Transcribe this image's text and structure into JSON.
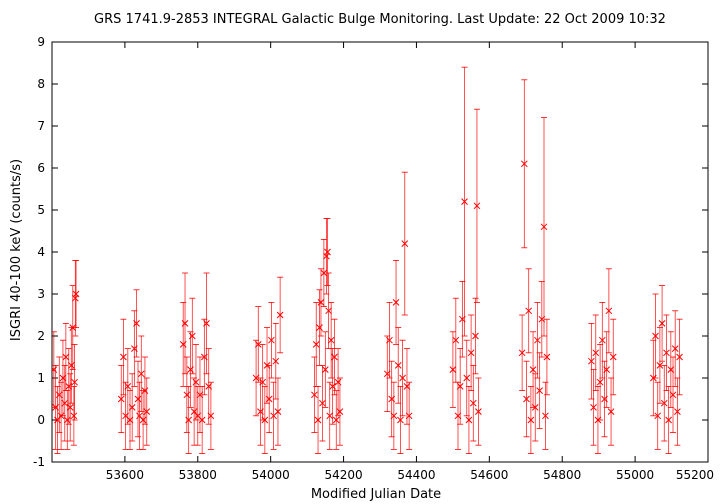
{
  "chart_data": {
    "type": "scatter",
    "title": "GRS 1741.9-2853   INTEGRAL Galactic Bulge Monitoring.  Last Update: 22 Oct 2009 10:32",
    "xlabel": "Modified Julian Date",
    "ylabel": "ISGRI 40-100 keV (counts/s)",
    "xlim": [
      53400,
      55200
    ],
    "ylim": [
      -1,
      9
    ],
    "x_ticks": [
      53600,
      53800,
      54000,
      54200,
      54400,
      54600,
      54800,
      55000,
      55200
    ],
    "y_ticks": [
      -1,
      0,
      1,
      2,
      3,
      4,
      5,
      6,
      7,
      8,
      9
    ],
    "marker": "x",
    "grid": false,
    "legend": "none",
    "color": "#ff0000",
    "series": [
      {
        "points": [
          {
            "x": 53405,
            "y": 1.2,
            "err": 0.9
          },
          {
            "x": 53410,
            "y": 0.3,
            "err": 1.0
          },
          {
            "x": 53415,
            "y": 0.0,
            "err": 0.8
          },
          {
            "x": 53420,
            "y": 0.6,
            "err": 0.9
          },
          {
            "x": 53425,
            "y": 0.1,
            "err": 0.8
          },
          {
            "x": 53430,
            "y": 1.0,
            "err": 0.9
          },
          {
            "x": 53435,
            "y": 0.4,
            "err": 0.9
          },
          {
            "x": 53438,
            "y": 1.5,
            "err": 0.8
          },
          {
            "x": 53442,
            "y": 0.0,
            "err": 0.7
          },
          {
            "x": 53446,
            "y": 0.8,
            "err": 0.9
          },
          {
            "x": 53450,
            "y": 0.3,
            "err": 0.8
          },
          {
            "x": 53453,
            "y": 1.3,
            "err": 0.9
          },
          {
            "x": 53457,
            "y": 2.2,
            "err": 1.0
          },
          {
            "x": 53460,
            "y": 0.1,
            "err": 0.7
          },
          {
            "x": 53462,
            "y": 0.9,
            "err": 0.9
          },
          {
            "x": 53464,
            "y": 2.9,
            "err": 0.9
          },
          {
            "x": 53466,
            "y": 3.0,
            "err": 0.8
          },
          {
            "x": 53590,
            "y": 0.5,
            "err": 0.8
          },
          {
            "x": 53596,
            "y": 1.5,
            "err": 0.9
          },
          {
            "x": 53602,
            "y": 0.1,
            "err": 0.8
          },
          {
            "x": 53608,
            "y": 0.8,
            "err": 0.9
          },
          {
            "x": 53614,
            "y": 0.0,
            "err": 0.7
          },
          {
            "x": 53620,
            "y": 0.3,
            "err": 0.8
          },
          {
            "x": 53626,
            "y": 1.7,
            "err": 0.9
          },
          {
            "x": 53632,
            "y": 2.3,
            "err": 0.8
          },
          {
            "x": 53636,
            "y": 0.5,
            "err": 0.9
          },
          {
            "x": 53640,
            "y": 0.1,
            "err": 0.8
          },
          {
            "x": 53645,
            "y": 1.1,
            "err": 0.9
          },
          {
            "x": 53650,
            "y": 0.0,
            "err": 0.7
          },
          {
            "x": 53655,
            "y": 0.7,
            "err": 0.8
          },
          {
            "x": 53660,
            "y": 0.2,
            "err": 0.8
          },
          {
            "x": 53760,
            "y": 1.8,
            "err": 1.0
          },
          {
            "x": 53765,
            "y": 2.3,
            "err": 1.2
          },
          {
            "x": 53770,
            "y": 0.6,
            "err": 0.9
          },
          {
            "x": 53775,
            "y": 0.0,
            "err": 0.8
          },
          {
            "x": 53780,
            "y": 1.2,
            "err": 0.9
          },
          {
            "x": 53785,
            "y": 2.0,
            "err": 0.9
          },
          {
            "x": 53790,
            "y": 0.2,
            "err": 0.8
          },
          {
            "x": 53795,
            "y": 0.9,
            "err": 0.9
          },
          {
            "x": 53800,
            "y": 0.1,
            "err": 0.7
          },
          {
            "x": 53806,
            "y": 0.6,
            "err": 0.9
          },
          {
            "x": 53812,
            "y": 0.0,
            "err": 0.8
          },
          {
            "x": 53818,
            "y": 1.5,
            "err": 0.9
          },
          {
            "x": 53824,
            "y": 2.3,
            "err": 1.2
          },
          {
            "x": 53830,
            "y": 0.8,
            "err": 0.9
          },
          {
            "x": 53836,
            "y": 0.1,
            "err": 0.8
          },
          {
            "x": 53960,
            "y": 1.0,
            "err": 0.9
          },
          {
            "x": 53966,
            "y": 1.8,
            "err": 0.9
          },
          {
            "x": 53972,
            "y": 0.2,
            "err": 0.8
          },
          {
            "x": 53978,
            "y": 0.9,
            "err": 0.9
          },
          {
            "x": 53984,
            "y": 0.0,
            "err": 0.8
          },
          {
            "x": 53990,
            "y": 1.3,
            "err": 0.9
          },
          {
            "x": 53996,
            "y": 0.5,
            "err": 0.8
          },
          {
            "x": 54002,
            "y": 1.9,
            "err": 0.9
          },
          {
            "x": 54008,
            "y": 0.1,
            "err": 0.8
          },
          {
            "x": 54014,
            "y": 1.4,
            "err": 0.9
          },
          {
            "x": 54020,
            "y": 0.2,
            "err": 0.8
          },
          {
            "x": 54026,
            "y": 2.5,
            "err": 0.9
          },
          {
            "x": 54120,
            "y": 0.6,
            "err": 0.9
          },
          {
            "x": 54125,
            "y": 1.8,
            "err": 1.0
          },
          {
            "x": 54130,
            "y": 0.0,
            "err": 0.8
          },
          {
            "x": 54134,
            "y": 2.2,
            "err": 0.9
          },
          {
            "x": 54138,
            "y": 2.8,
            "err": 0.8
          },
          {
            "x": 54142,
            "y": 0.4,
            "err": 0.9
          },
          {
            "x": 54146,
            "y": 3.5,
            "err": 0.8
          },
          {
            "x": 54150,
            "y": 1.2,
            "err": 0.9
          },
          {
            "x": 54153,
            "y": 3.9,
            "err": 0.9
          },
          {
            "x": 54156,
            "y": 4.0,
            "err": 0.8
          },
          {
            "x": 54159,
            "y": 2.6,
            "err": 0.9
          },
          {
            "x": 54162,
            "y": 0.1,
            "err": 0.8
          },
          {
            "x": 54166,
            "y": 1.9,
            "err": 0.9
          },
          {
            "x": 54170,
            "y": 0.8,
            "err": 0.9
          },
          {
            "x": 54175,
            "y": 1.5,
            "err": 0.9
          },
          {
            "x": 54180,
            "y": 0.0,
            "err": 0.7
          },
          {
            "x": 54185,
            "y": 0.9,
            "err": 0.8
          },
          {
            "x": 54190,
            "y": 0.2,
            "err": 0.8
          },
          {
            "x": 54320,
            "y": 1.1,
            "err": 0.9
          },
          {
            "x": 54326,
            "y": 1.9,
            "err": 0.9
          },
          {
            "x": 54332,
            "y": 0.5,
            "err": 0.9
          },
          {
            "x": 54338,
            "y": 0.1,
            "err": 0.8
          },
          {
            "x": 54344,
            "y": 2.8,
            "err": 1.0
          },
          {
            "x": 54350,
            "y": 1.3,
            "err": 0.9
          },
          {
            "x": 54356,
            "y": 0.0,
            "err": 0.8
          },
          {
            "x": 54362,
            "y": 1.0,
            "err": 0.9
          },
          {
            "x": 54368,
            "y": 4.2,
            "err": 1.7
          },
          {
            "x": 54374,
            "y": 0.8,
            "err": 0.9
          },
          {
            "x": 54380,
            "y": 0.1,
            "err": 0.8
          },
          {
            "x": 54500,
            "y": 1.2,
            "err": 0.9
          },
          {
            "x": 54508,
            "y": 1.9,
            "err": 1.0
          },
          {
            "x": 54514,
            "y": 0.1,
            "err": 0.8
          },
          {
            "x": 54520,
            "y": 0.8,
            "err": 0.9
          },
          {
            "x": 54526,
            "y": 2.4,
            "err": 0.9
          },
          {
            "x": 54532,
            "y": 5.2,
            "err": 3.2
          },
          {
            "x": 54538,
            "y": 1.0,
            "err": 0.9
          },
          {
            "x": 54544,
            "y": 0.0,
            "err": 0.8
          },
          {
            "x": 54550,
            "y": 1.6,
            "err": 0.9
          },
          {
            "x": 54556,
            "y": 0.4,
            "err": 0.9
          },
          {
            "x": 54562,
            "y": 2.0,
            "err": 0.9
          },
          {
            "x": 54566,
            "y": 5.1,
            "err": 2.3
          },
          {
            "x": 54570,
            "y": 0.2,
            "err": 0.8
          },
          {
            "x": 54690,
            "y": 1.6,
            "err": 0.9
          },
          {
            "x": 54696,
            "y": 6.1,
            "err": 2.0
          },
          {
            "x": 54702,
            "y": 0.5,
            "err": 0.9
          },
          {
            "x": 54708,
            "y": 2.6,
            "err": 1.0
          },
          {
            "x": 54714,
            "y": 0.0,
            "err": 0.8
          },
          {
            "x": 54720,
            "y": 1.2,
            "err": 0.9
          },
          {
            "x": 54726,
            "y": 0.3,
            "err": 0.8
          },
          {
            "x": 54732,
            "y": 1.9,
            "err": 0.9
          },
          {
            "x": 54738,
            "y": 0.7,
            "err": 0.9
          },
          {
            "x": 54744,
            "y": 2.4,
            "err": 0.9
          },
          {
            "x": 54750,
            "y": 4.6,
            "err": 2.6
          },
          {
            "x": 54754,
            "y": 0.1,
            "err": 0.8
          },
          {
            "x": 54758,
            "y": 1.5,
            "err": 0.9
          },
          {
            "x": 54880,
            "y": 1.4,
            "err": 0.9
          },
          {
            "x": 54886,
            "y": 0.3,
            "err": 0.9
          },
          {
            "x": 54892,
            "y": 1.6,
            "err": 0.9
          },
          {
            "x": 54898,
            "y": 0.0,
            "err": 0.8
          },
          {
            "x": 54904,
            "y": 0.9,
            "err": 0.9
          },
          {
            "x": 54910,
            "y": 1.9,
            "err": 0.9
          },
          {
            "x": 54916,
            "y": 0.5,
            "err": 0.9
          },
          {
            "x": 54922,
            "y": 1.2,
            "err": 0.9
          },
          {
            "x": 54928,
            "y": 2.6,
            "err": 1.0
          },
          {
            "x": 54934,
            "y": 0.2,
            "err": 0.8
          },
          {
            "x": 54940,
            "y": 1.5,
            "err": 0.9
          },
          {
            "x": 55050,
            "y": 1.0,
            "err": 0.9
          },
          {
            "x": 55056,
            "y": 2.0,
            "err": 1.0
          },
          {
            "x": 55062,
            "y": 0.1,
            "err": 0.8
          },
          {
            "x": 55068,
            "y": 1.3,
            "err": 0.9
          },
          {
            "x": 55074,
            "y": 2.3,
            "err": 0.9
          },
          {
            "x": 55080,
            "y": 0.4,
            "err": 0.9
          },
          {
            "x": 55086,
            "y": 1.6,
            "err": 0.9
          },
          {
            "x": 55092,
            "y": 0.0,
            "err": 0.8
          },
          {
            "x": 55098,
            "y": 1.2,
            "err": 0.9
          },
          {
            "x": 55104,
            "y": 0.6,
            "err": 0.9
          },
          {
            "x": 55110,
            "y": 1.7,
            "err": 0.9
          },
          {
            "x": 55116,
            "y": 0.2,
            "err": 0.8
          },
          {
            "x": 55122,
            "y": 1.5,
            "err": 0.9
          }
        ]
      }
    ]
  }
}
